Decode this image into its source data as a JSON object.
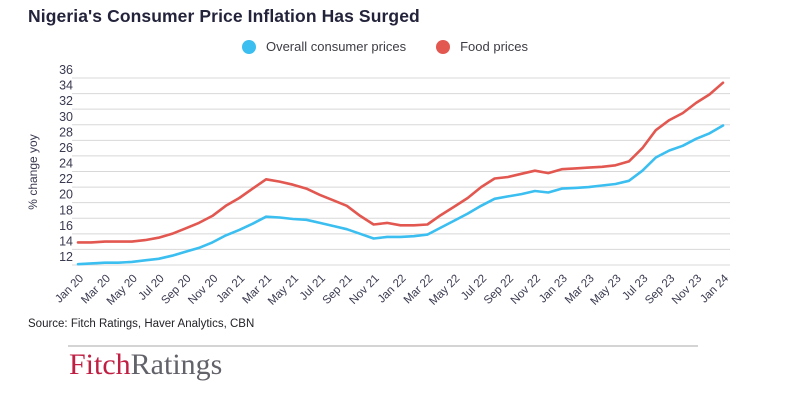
{
  "chart_data": {
    "type": "line",
    "title": "Nigeria's Consumer Price Inflation Has Surged",
    "xlabel": "",
    "ylabel": "% change yoy",
    "ylim": [
      12,
      36
    ],
    "ytick_step": 2,
    "grid": "horizontal",
    "legend_position": "top-center",
    "x_tick_labels": [
      "Jan 20",
      "Mar 20",
      "May 20",
      "Jul 20",
      "Sep 20",
      "Nov 20",
      "Jan 21",
      "Mar 21",
      "May 21",
      "Jul 21",
      "Sep 21",
      "Nov 21",
      "Jan 22",
      "Mar 22",
      "May 22",
      "Jul 22",
      "Sep 22",
      "Nov 22",
      "Jan 23",
      "Mar 23",
      "May 23",
      "Jul 23",
      "Sep 23",
      "Nov 23",
      "Jan 24"
    ],
    "months_per_tick": 2,
    "series": [
      {
        "name": "Overall consumer prices",
        "color": "#3bbef0",
        "values": [
          12.1,
          12.2,
          12.3,
          12.3,
          12.4,
          12.6,
          12.8,
          13.2,
          13.7,
          14.2,
          14.9,
          15.8,
          16.5,
          17.3,
          18.2,
          18.1,
          17.9,
          17.8,
          17.4,
          17.0,
          16.6,
          16.0,
          15.4,
          15.6,
          15.6,
          15.7,
          15.9,
          16.8,
          17.7,
          18.6,
          19.6,
          20.5,
          20.8,
          21.1,
          21.5,
          21.3,
          21.8,
          21.9,
          22.0,
          22.2,
          22.4,
          22.8,
          24.1,
          25.8,
          26.7,
          27.3,
          28.2,
          28.9,
          29.9
        ]
      },
      {
        "name": "Food prices",
        "color": "#e25750",
        "values": [
          14.9,
          14.9,
          15.0,
          15.0,
          15.0,
          15.2,
          15.5,
          16.0,
          16.7,
          17.4,
          18.3,
          19.6,
          20.6,
          21.8,
          23.0,
          22.7,
          22.3,
          21.8,
          21.0,
          20.3,
          19.6,
          18.3,
          17.2,
          17.4,
          17.1,
          17.1,
          17.2,
          18.4,
          19.5,
          20.6,
          22.0,
          23.1,
          23.3,
          23.7,
          24.1,
          23.8,
          24.3,
          24.4,
          24.5,
          24.6,
          24.8,
          25.3,
          27.0,
          29.3,
          30.6,
          31.5,
          32.8,
          33.9,
          35.4
        ]
      }
    ]
  },
  "footer": {
    "source": "Source: Fitch Ratings, Haver Analytics, CBN",
    "logo": {
      "part1": "Fitch",
      "part2": "Ratings"
    }
  }
}
